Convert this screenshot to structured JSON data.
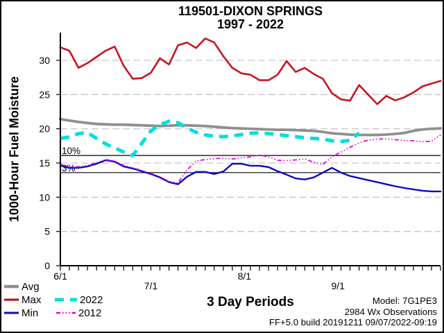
{
  "page": {
    "background": "#ffffff",
    "border_color": "#000000"
  },
  "header": {
    "title_line1": "119501-DIXON SPRINGS",
    "title_line2": "1997 - 2022"
  },
  "chart_data": {
    "type": "line",
    "title": "119501-DIXON SPRINGS 1997 - 2022",
    "xlabel": "3 Day Periods",
    "ylabel": "1000-Hour Fuel Moisture",
    "x_description": "3-day periods from 6/1 to early October; 43 periods total",
    "ylim": [
      0,
      34.05
    ],
    "yticks": [
      0,
      5,
      10,
      15,
      20,
      25,
      30
    ],
    "xticks": [
      {
        "pos": 0,
        "label": "6/1",
        "row": 0
      },
      {
        "pos": 10,
        "label": "7/1",
        "row": 1
      },
      {
        "pos": 20.33,
        "label": "8/1",
        "row": 0
      },
      {
        "pos": 30.67,
        "label": "9/1",
        "row": 1
      }
    ],
    "n_points": 43,
    "grid_on": true,
    "grid_color": "#c6c6c6",
    "legend_position": "bottom-left",
    "ref_lines": [
      {
        "label": "10%",
        "value": 16.1
      },
      {
        "label": "3%",
        "value": 13.6
      }
    ],
    "draw_order": [
      0,
      1,
      2,
      4,
      3
    ],
    "series": [
      {
        "name": "Avg",
        "color": "#8f8f8f",
        "width": 3.8,
        "dash": "",
        "values": [
          21.4,
          21.2,
          21.0,
          20.85,
          20.7,
          20.65,
          20.6,
          20.6,
          20.55,
          20.5,
          20.45,
          20.4,
          20.45,
          20.5,
          20.5,
          20.45,
          20.4,
          20.3,
          20.2,
          20.1,
          20.05,
          20.0,
          19.95,
          19.9,
          19.85,
          19.85,
          19.8,
          19.75,
          19.7,
          19.55,
          19.35,
          19.25,
          19.15,
          19.1,
          19.1,
          19.1,
          19.15,
          19.25,
          19.4,
          19.7,
          19.9,
          20.0,
          20.05
        ]
      },
      {
        "name": "Max",
        "color": "#c81420",
        "width": 2.6,
        "dash": "",
        "values": [
          31.9,
          31.4,
          28.9,
          29.6,
          30.5,
          31.4,
          32.0,
          29.2,
          27.3,
          27.4,
          28.2,
          30.3,
          29.4,
          32.2,
          32.6,
          31.8,
          33.2,
          32.6,
          30.6,
          28.9,
          28.1,
          27.9,
          27.1,
          27.1,
          27.9,
          29.9,
          28.3,
          28.9,
          28.0,
          27.3,
          25.2,
          24.3,
          24.1,
          26.4,
          25.0,
          23.6,
          24.8,
          24.15,
          24.6,
          25.3,
          26.2,
          26.6,
          27.0
        ]
      },
      {
        "name": "Min",
        "color": "#0a0ac0",
        "width": 2.4,
        "dash": "",
        "values": [
          14.6,
          14.3,
          14.3,
          14.5,
          14.9,
          15.4,
          15.2,
          14.5,
          14.2,
          13.8,
          13.4,
          12.9,
          12.2,
          11.9,
          13.0,
          13.7,
          13.7,
          13.4,
          13.75,
          14.9,
          14.9,
          14.6,
          14.6,
          14.4,
          13.8,
          13.3,
          12.75,
          12.6,
          12.9,
          13.6,
          14.3,
          13.6,
          13.1,
          12.8,
          12.5,
          12.2,
          11.9,
          11.6,
          11.35,
          11.15,
          10.95,
          10.85,
          10.85
        ]
      },
      {
        "name": "2022",
        "color": "#00dede",
        "width": 5,
        "dash": "13 9",
        "values": [
          18.6,
          18.8,
          19.3,
          19.45,
          18.6,
          17.8,
          17.2,
          16.6,
          16.1,
          17.9,
          19.7,
          20.6,
          21.1,
          20.9,
          20.1,
          19.5,
          19.1,
          18.9,
          18.85,
          18.95,
          19.15,
          19.35,
          19.4,
          19.3,
          19.15,
          19.0,
          18.85,
          18.7,
          18.6,
          18.5,
          18.25,
          18.15,
          18.3,
          19.4
        ]
      },
      {
        "name": "2012",
        "color": "#e100e1",
        "width": 1.8,
        "dash": "6 3 1.5 3 1.5 3 1.5 3",
        "values": [
          14.8,
          14.45,
          14.45,
          14.65,
          15.05,
          15.5,
          15.3,
          14.65,
          14.3,
          13.9,
          13.5,
          13.0,
          12.3,
          12.1,
          14.0,
          15.3,
          15.5,
          15.65,
          15.7,
          15.6,
          15.75,
          15.9,
          16.15,
          15.9,
          15.4,
          15.35,
          15.45,
          15.6,
          15.1,
          14.8,
          15.9,
          16.6,
          17.3,
          17.95,
          18.35,
          18.5,
          18.5,
          18.4,
          18.3,
          18.25,
          18.1,
          18.2,
          19.1
        ]
      }
    ]
  },
  "footer": {
    "model": "Model: 7G1PE3",
    "observations": "2984 Wx Observations",
    "build": "FF+5.0 build 20191211 09/07/2022-09:19"
  }
}
